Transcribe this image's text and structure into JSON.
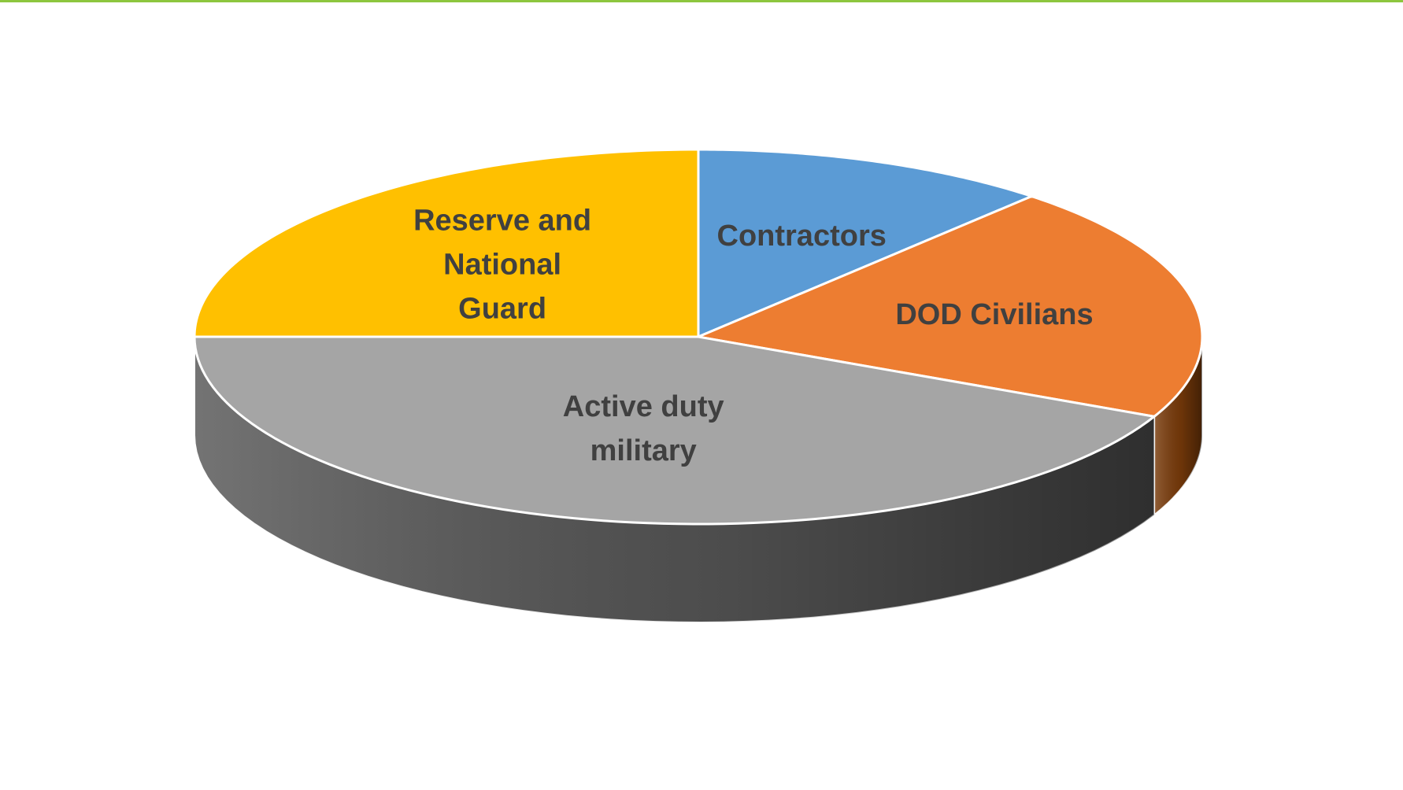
{
  "theme": {
    "rule_color": "#8DC63F",
    "background": "#ffffff",
    "label_color": "#404040"
  },
  "chart_data": {
    "type": "pie",
    "style": "3d",
    "title": "",
    "categories": [
      "Contractors",
      "DOD Civilians",
      "Active duty military",
      "Reserve and National Guard"
    ],
    "values": [
      11.5,
      20.5,
      43.0,
      25.0
    ],
    "label_lines": [
      [
        "Contractors"
      ],
      [
        "DOD Civilians"
      ],
      [
        "Active duty",
        "military"
      ],
      [
        "Reserve and",
        "National",
        "Guard"
      ]
    ],
    "colors": [
      "#5B9BD5",
      "#ED7D31",
      "#A5A5A5",
      "#FFC000"
    ],
    "side_colors": [
      "#2E5C8A",
      "#7A3B0A",
      "#555555",
      "#8A6800"
    ],
    "start_angle_deg": 0,
    "direction": "clockwise",
    "data_labels": "category names inside slices",
    "legend": "none"
  }
}
